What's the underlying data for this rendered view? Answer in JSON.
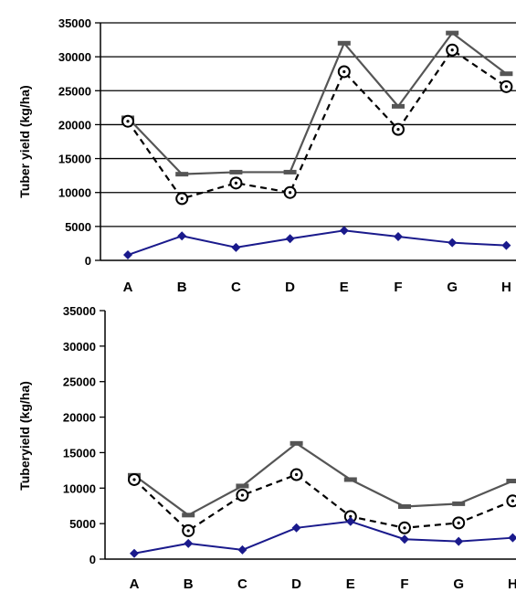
{
  "chart_data": [
    {
      "type": "line",
      "categories": [
        "A",
        "B",
        "C",
        "D",
        "E",
        "F",
        "G",
        "H"
      ],
      "ylabel": "Tuber yield (kg/ha)",
      "ylim": [
        0,
        35000
      ],
      "yticks": [
        0,
        5000,
        10000,
        15000,
        20000,
        25000,
        30000,
        35000
      ],
      "grid": true,
      "series": [
        {
          "values": [
            21000,
            12700,
            13000,
            13000,
            32000,
            22700,
            33500,
            27500
          ],
          "color": "#555555",
          "marker": "dash",
          "dash": false
        },
        {
          "values": [
            20500,
            9100,
            11400,
            10000,
            27800,
            19300,
            31000,
            25600
          ],
          "color": "#000000",
          "marker": "open-circle",
          "dash": true
        },
        {
          "values": [
            800,
            3600,
            1900,
            3200,
            4400,
            3500,
            2600,
            2200
          ],
          "color": "#1a1a8c",
          "marker": "diamond",
          "dash": false
        }
      ]
    },
    {
      "type": "line",
      "categories": [
        "A",
        "B",
        "C",
        "D",
        "E",
        "F",
        "G",
        "H"
      ],
      "ylabel": "Tuberyield (kg/ha)",
      "ylim": [
        0,
        35000
      ],
      "yticks": [
        0,
        5000,
        10000,
        15000,
        20000,
        25000,
        30000,
        35000
      ],
      "grid": false,
      "series": [
        {
          "values": [
            11800,
            6200,
            10300,
            16300,
            11200,
            7400,
            7800,
            11000
          ],
          "color": "#555555",
          "marker": "dash",
          "dash": false
        },
        {
          "values": [
            11200,
            4000,
            9000,
            11900,
            6000,
            4400,
            5100,
            8200
          ],
          "color": "#000000",
          "marker": "open-circle",
          "dash": true
        },
        {
          "values": [
            800,
            2200,
            1300,
            4400,
            5300,
            2800,
            2500,
            3000
          ],
          "color": "#1a1a8c",
          "marker": "diamond",
          "dash": false
        }
      ]
    }
  ]
}
